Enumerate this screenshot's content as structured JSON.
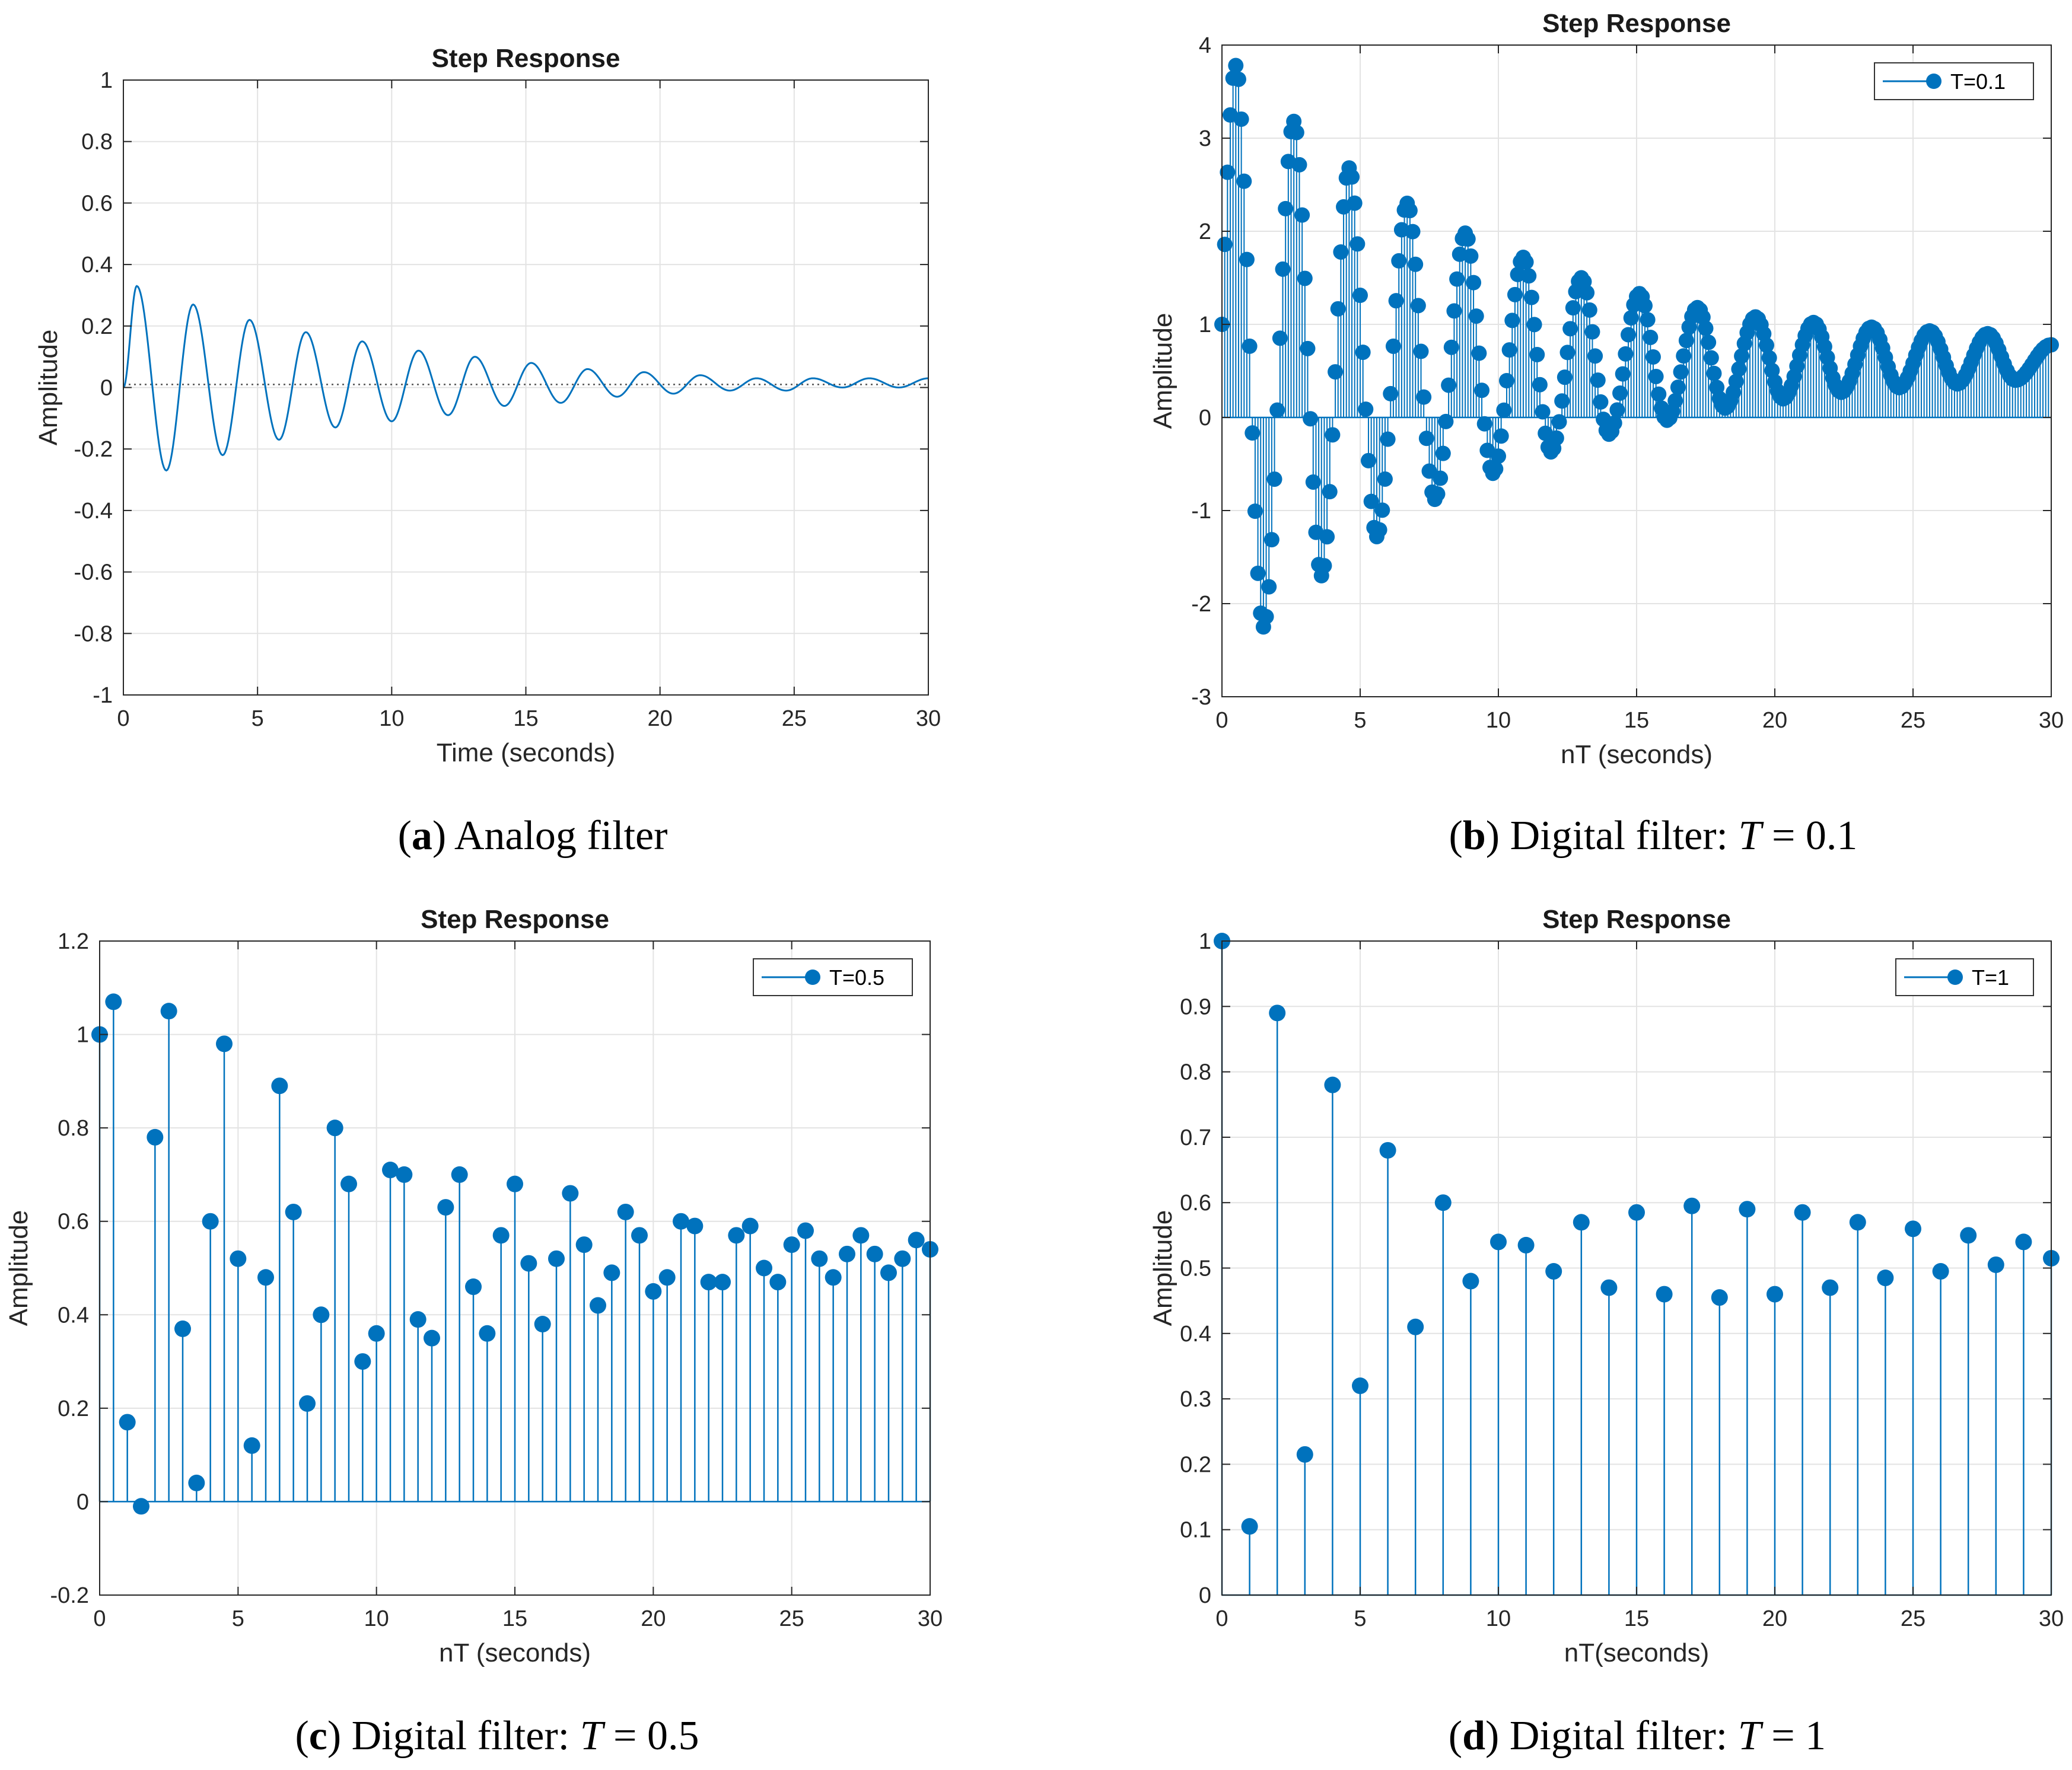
{
  "colors": {
    "series": "#0072BD",
    "grid": "#e3e3e3",
    "axis": "#262626",
    "background": "#ffffff"
  },
  "chart_data": [
    {
      "id": "a",
      "type": "line",
      "title": "Step Response",
      "xlabel": "Time (seconds)",
      "ylabel": "Amplitude",
      "xlim": [
        0,
        30
      ],
      "ylim": [
        -1,
        1
      ],
      "xticks": [
        0,
        5,
        10,
        15,
        20,
        25,
        30
      ],
      "yticks": [
        -1,
        -0.8,
        -0.6,
        -0.4,
        -0.2,
        0,
        0.2,
        0.4,
        0.6,
        0.8,
        1
      ],
      "ytick_labels": [
        "-1",
        "-0.8",
        "-0.6",
        "-0.4",
        "-0.2",
        "0",
        "0.2",
        "0.4",
        "0.6",
        "0.8",
        "1"
      ],
      "grid": true,
      "reference_line": 0.01,
      "peaks": [
        {
          "t": 0.5,
          "y": 0.33
        },
        {
          "t": 1.6,
          "y": -0.27
        },
        {
          "t": 2.6,
          "y": 0.27
        },
        {
          "t": 3.7,
          "y": -0.22
        },
        {
          "t": 4.7,
          "y": 0.22
        },
        {
          "t": 5.8,
          "y": -0.17
        },
        {
          "t": 6.8,
          "y": 0.18
        },
        {
          "t": 7.9,
          "y": -0.13
        },
        {
          "t": 8.9,
          "y": 0.15
        },
        {
          "t": 10.0,
          "y": -0.11
        },
        {
          "t": 11.0,
          "y": 0.12
        },
        {
          "t": 12.1,
          "y": -0.09
        },
        {
          "t": 13.1,
          "y": 0.1
        },
        {
          "t": 14.2,
          "y": -0.06
        },
        {
          "t": 15.2,
          "y": 0.08
        },
        {
          "t": 16.3,
          "y": -0.05
        },
        {
          "t": 17.3,
          "y": 0.06
        },
        {
          "t": 18.4,
          "y": -0.03
        },
        {
          "t": 19.4,
          "y": 0.05
        },
        {
          "t": 20.5,
          "y": -0.02
        },
        {
          "t": 21.5,
          "y": 0.04
        },
        {
          "t": 22.6,
          "y": -0.01
        },
        {
          "t": 23.6,
          "y": 0.03
        },
        {
          "t": 24.7,
          "y": -0.01
        },
        {
          "t": 25.7,
          "y": 0.03
        },
        {
          "t": 26.8,
          "y": 0.0
        },
        {
          "t": 27.8,
          "y": 0.03
        },
        {
          "t": 28.9,
          "y": 0.0
        },
        {
          "t": 30.0,
          "y": 0.03
        }
      ],
      "caption_letter": "a",
      "caption_text": "Analog filter"
    },
    {
      "id": "b",
      "type": "stem",
      "title": "Step Response",
      "xlabel": "nT (seconds)",
      "ylabel": "Amplitude",
      "xlim": [
        0,
        30
      ],
      "ylim": [
        -3,
        4
      ],
      "xticks": [
        0,
        5,
        10,
        15,
        20,
        25,
        30
      ],
      "yticks": [
        -3,
        -2,
        -1,
        0,
        1,
        2,
        3,
        4
      ],
      "ytick_labels": [
        "-3",
        "-2",
        "-1",
        "0",
        "1",
        "2",
        "3",
        "4"
      ],
      "grid": true,
      "legend": "T=0.1",
      "legend_position": "top-right",
      "sample_period": 0.1,
      "first_value": 1,
      "envelope_start": 3.78,
      "envelope_end": 0.37,
      "peaks": [
        {
          "t": 0.5,
          "y": 3.78
        },
        {
          "t": 1.5,
          "y": -2.25
        },
        {
          "t": 2.6,
          "y": 3.18
        },
        {
          "t": 3.6,
          "y": -1.7
        },
        {
          "t": 4.6,
          "y": 2.68
        },
        {
          "t": 5.6,
          "y": -1.28
        },
        {
          "t": 6.7,
          "y": 2.3
        },
        {
          "t": 7.7,
          "y": -0.88
        },
        {
          "t": 8.8,
          "y": 1.98
        },
        {
          "t": 9.8,
          "y": -0.6
        },
        {
          "t": 10.9,
          "y": 1.72
        },
        {
          "t": 11.9,
          "y": -0.37
        },
        {
          "t": 13.0,
          "y": 1.5
        },
        {
          "t": 14.0,
          "y": -0.18
        },
        {
          "t": 15.1,
          "y": 1.33
        },
        {
          "t": 16.1,
          "y": -0.03
        },
        {
          "t": 17.2,
          "y": 1.18
        },
        {
          "t": 18.2,
          "y": 0.1
        },
        {
          "t": 19.3,
          "y": 1.08
        },
        {
          "t": 20.3,
          "y": 0.2
        },
        {
          "t": 21.4,
          "y": 1.02
        },
        {
          "t": 22.4,
          "y": 0.27
        },
        {
          "t": 23.5,
          "y": 0.97
        },
        {
          "t": 24.5,
          "y": 0.32
        },
        {
          "t": 25.6,
          "y": 0.93
        },
        {
          "t": 26.6,
          "y": 0.36
        },
        {
          "t": 27.7,
          "y": 0.9
        },
        {
          "t": 28.7,
          "y": 0.4
        },
        {
          "t": 30.0,
          "y": 0.78
        }
      ],
      "caption_letter": "b",
      "caption_text": "Digital filter: ",
      "caption_var": "T",
      "caption_value": " = 0.1"
    },
    {
      "id": "c",
      "type": "stem",
      "title": "Step Response",
      "xlabel": "nT (seconds)",
      "ylabel": "Amplitude",
      "xlim": [
        0,
        30
      ],
      "ylim": [
        -0.2,
        1.2
      ],
      "xticks": [
        0,
        5,
        10,
        15,
        20,
        25,
        30
      ],
      "yticks": [
        -0.2,
        0,
        0.2,
        0.4,
        0.6,
        0.8,
        1,
        1.2
      ],
      "ytick_labels": [
        "-0.2",
        "0",
        "0.2",
        "0.4",
        "0.6",
        "0.8",
        "1",
        "1.2"
      ],
      "grid": true,
      "legend": "T=0.5",
      "legend_position": "top-right",
      "x": [
        0,
        0.5,
        1,
        1.5,
        2,
        2.5,
        3,
        3.5,
        4,
        4.5,
        5,
        5.5,
        6,
        6.5,
        7,
        7.5,
        8,
        8.5,
        9,
        9.5,
        10,
        10.5,
        11,
        11.5,
        12,
        12.5,
        13,
        13.5,
        14,
        14.5,
        15,
        15.5,
        16,
        16.5,
        17,
        17.5,
        18,
        18.5,
        19,
        19.5,
        20,
        20.5,
        21,
        21.5,
        22,
        22.5,
        23,
        23.5,
        24,
        24.5,
        25,
        25.5,
        26,
        26.5,
        27,
        27.5,
        28,
        28.5,
        29,
        29.5,
        30
      ],
      "y": [
        1.0,
        1.07,
        0.17,
        -0.01,
        0.78,
        1.05,
        0.37,
        0.04,
        0.6,
        0.98,
        0.52,
        0.12,
        0.48,
        0.89,
        0.62,
        0.21,
        0.4,
        0.8,
        0.68,
        0.3,
        0.36,
        0.71,
        0.7,
        0.39,
        0.35,
        0.63,
        0.7,
        0.46,
        0.36,
        0.57,
        0.68,
        0.51,
        0.38,
        0.52,
        0.66,
        0.55,
        0.42,
        0.49,
        0.62,
        0.57,
        0.45,
        0.48,
        0.6,
        0.59,
        0.47,
        0.47,
        0.57,
        0.59,
        0.5,
        0.47,
        0.55,
        0.58,
        0.52,
        0.48,
        0.53,
        0.57,
        0.53,
        0.49,
        0.52,
        0.56,
        0.54
      ],
      "caption_letter": "c",
      "caption_text": "Digital filter: ",
      "caption_var": "T",
      "caption_value": " = 0.5"
    },
    {
      "id": "d",
      "type": "stem",
      "title": "Step Response",
      "xlabel": "nT(seconds)",
      "ylabel": "Amplitude",
      "xlim": [
        0,
        30
      ],
      "ylim": [
        0,
        1
      ],
      "xticks": [
        0,
        5,
        10,
        15,
        20,
        25,
        30
      ],
      "yticks": [
        0,
        0.1,
        0.2,
        0.3,
        0.4,
        0.5,
        0.6,
        0.7,
        0.8,
        0.9,
        1
      ],
      "ytick_labels": [
        "0",
        "0.1",
        "0.2",
        "0.3",
        "0.4",
        "0.5",
        "0.6",
        "0.7",
        "0.8",
        "0.9",
        "1"
      ],
      "grid": true,
      "legend": "T=1",
      "legend_position": "top-right",
      "x": [
        0,
        1,
        2,
        3,
        4,
        5,
        6,
        7,
        8,
        9,
        10,
        11,
        12,
        13,
        14,
        15,
        16,
        17,
        18,
        19,
        20,
        21,
        22,
        23,
        24,
        25,
        26,
        27,
        28,
        29,
        30
      ],
      "y": [
        1.0,
        0.105,
        0.89,
        0.215,
        0.78,
        0.32,
        0.68,
        0.41,
        0.6,
        0.48,
        0.54,
        0.535,
        0.495,
        0.57,
        0.47,
        0.585,
        0.46,
        0.595,
        0.455,
        0.59,
        0.46,
        0.585,
        0.47,
        0.57,
        0.485,
        0.56,
        0.495,
        0.55,
        0.505,
        0.54,
        0.515
      ],
      "caption_letter": "d",
      "caption_text": "Digital filter: ",
      "caption_var": "T",
      "caption_value": " = 1"
    }
  ]
}
